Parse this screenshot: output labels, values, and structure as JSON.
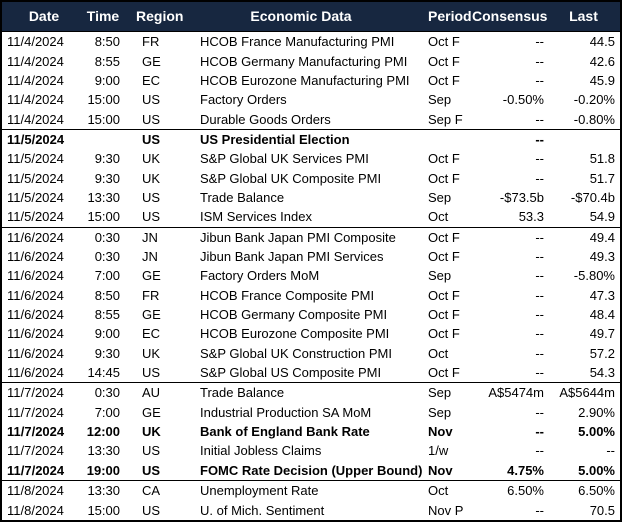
{
  "styles": {
    "header_bg": "#172740",
    "header_text": "#FFFFFF",
    "grid_border": "#000000",
    "row_text": "#000000"
  },
  "chart_data": {
    "type": "table",
    "title": "",
    "columns": [
      {
        "key": "date",
        "label": "Date"
      },
      {
        "key": "time",
        "label": "Time"
      },
      {
        "key": "region",
        "label": "Region"
      },
      {
        "key": "event",
        "label": "Economic Data"
      },
      {
        "key": "period",
        "label": "Period"
      },
      {
        "key": "consensus",
        "label": "Consensus"
      },
      {
        "key": "last",
        "label": "Last"
      }
    ],
    "rows": [
      {
        "date": "11/4/2024",
        "time": "8:50",
        "region": "FR",
        "event": "HCOB France Manufacturing PMI",
        "period": "Oct F",
        "consensus": "--",
        "last": "44.5",
        "bold": false,
        "group_start": false
      },
      {
        "date": "11/4/2024",
        "time": "8:55",
        "region": "GE",
        "event": "HCOB Germany Manufacturing PMI",
        "period": "Oct F",
        "consensus": "--",
        "last": "42.6",
        "bold": false,
        "group_start": false
      },
      {
        "date": "11/4/2024",
        "time": "9:00",
        "region": "EC",
        "event": "HCOB Eurozone Manufacturing PMI",
        "period": "Oct F",
        "consensus": "--",
        "last": "45.9",
        "bold": false,
        "group_start": false
      },
      {
        "date": "11/4/2024",
        "time": "15:00",
        "region": "US",
        "event": "Factory Orders",
        "period": "Sep",
        "consensus": "-0.50%",
        "last": "-0.20%",
        "bold": false,
        "group_start": false
      },
      {
        "date": "11/4/2024",
        "time": "15:00",
        "region": "US",
        "event": "Durable Goods Orders",
        "period": "Sep F",
        "consensus": "--",
        "last": "-0.80%",
        "bold": false,
        "group_start": false
      },
      {
        "date": "11/5/2024",
        "time": "",
        "region": "US",
        "event": "US Presidential Election",
        "period": "",
        "consensus": "--",
        "last": "",
        "bold": true,
        "group_start": true
      },
      {
        "date": "11/5/2024",
        "time": "9:30",
        "region": "UK",
        "event": "S&P Global UK Services PMI",
        "period": "Oct F",
        "consensus": "--",
        "last": "51.8",
        "bold": false,
        "group_start": false
      },
      {
        "date": "11/5/2024",
        "time": "9:30",
        "region": "UK",
        "event": "S&P Global UK Composite PMI",
        "period": "Oct F",
        "consensus": "--",
        "last": "51.7",
        "bold": false,
        "group_start": false
      },
      {
        "date": "11/5/2024",
        "time": "13:30",
        "region": "US",
        "event": "Trade Balance",
        "period": "Sep",
        "consensus": "-$73.5b",
        "last": "-$70.4b",
        "bold": false,
        "group_start": false
      },
      {
        "date": "11/5/2024",
        "time": "15:00",
        "region": "US",
        "event": "ISM Services Index",
        "period": "Oct",
        "consensus": "53.3",
        "last": "54.9",
        "bold": false,
        "group_start": false
      },
      {
        "date": "11/6/2024",
        "time": "0:30",
        "region": "JN",
        "event": "Jibun Bank Japan PMI Composite",
        "period": "Oct F",
        "consensus": "--",
        "last": "49.4",
        "bold": false,
        "group_start": true
      },
      {
        "date": "11/6/2024",
        "time": "0:30",
        "region": "JN",
        "event": "Jibun Bank Japan PMI Services",
        "period": "Oct F",
        "consensus": "--",
        "last": "49.3",
        "bold": false,
        "group_start": false
      },
      {
        "date": "11/6/2024",
        "time": "7:00",
        "region": "GE",
        "event": "Factory Orders MoM",
        "period": "Sep",
        "consensus": "--",
        "last": "-5.80%",
        "bold": false,
        "group_start": false
      },
      {
        "date": "11/6/2024",
        "time": "8:50",
        "region": "FR",
        "event": "HCOB France Composite PMI",
        "period": "Oct F",
        "consensus": "--",
        "last": "47.3",
        "bold": false,
        "group_start": false
      },
      {
        "date": "11/6/2024",
        "time": "8:55",
        "region": "GE",
        "event": "HCOB Germany Composite PMI",
        "period": "Oct F",
        "consensus": "--",
        "last": "48.4",
        "bold": false,
        "group_start": false
      },
      {
        "date": "11/6/2024",
        "time": "9:00",
        "region": "EC",
        "event": "HCOB Eurozone Composite PMI",
        "period": "Oct F",
        "consensus": "--",
        "last": "49.7",
        "bold": false,
        "group_start": false
      },
      {
        "date": "11/6/2024",
        "time": "9:30",
        "region": "UK",
        "event": "S&P Global UK Construction PMI",
        "period": "Oct",
        "consensus": "--",
        "last": "57.2",
        "bold": false,
        "group_start": false
      },
      {
        "date": "11/6/2024",
        "time": "14:45",
        "region": "US",
        "event": "S&P Global US Composite PMI",
        "period": "Oct F",
        "consensus": "--",
        "last": "54.3",
        "bold": false,
        "group_start": false
      },
      {
        "date": "11/7/2024",
        "time": "0:30",
        "region": "AU",
        "event": "Trade Balance",
        "period": "Sep",
        "consensus": "A$5474m",
        "last": "A$5644m",
        "bold": false,
        "group_start": true
      },
      {
        "date": "11/7/2024",
        "time": "7:00",
        "region": "GE",
        "event": "Industrial Production SA MoM",
        "period": "Sep",
        "consensus": "--",
        "last": "2.90%",
        "bold": false,
        "group_start": false
      },
      {
        "date": "11/7/2024",
        "time": "12:00",
        "region": "UK",
        "event": "Bank of England Bank Rate",
        "period": "Nov",
        "consensus": "--",
        "last": "5.00%",
        "bold": true,
        "group_start": false
      },
      {
        "date": "11/7/2024",
        "time": "13:30",
        "region": "US",
        "event": "Initial Jobless Claims",
        "period": "1/w",
        "consensus": "--",
        "last": "--",
        "bold": false,
        "group_start": false
      },
      {
        "date": "11/7/2024",
        "time": "19:00",
        "region": "US",
        "event": "FOMC Rate Decision (Upper Bound)",
        "period": "Nov",
        "consensus": "4.75%",
        "last": "5.00%",
        "bold": true,
        "group_start": false
      },
      {
        "date": "11/8/2024",
        "time": "13:30",
        "region": "CA",
        "event": "Unemployment Rate",
        "period": "Oct",
        "consensus": "6.50%",
        "last": "6.50%",
        "bold": false,
        "group_start": true
      },
      {
        "date": "11/8/2024",
        "time": "15:00",
        "region": "US",
        "event": "U. of Mich. Sentiment",
        "period": "Nov P",
        "consensus": "--",
        "last": "70.5",
        "bold": false,
        "group_start": false
      }
    ]
  }
}
